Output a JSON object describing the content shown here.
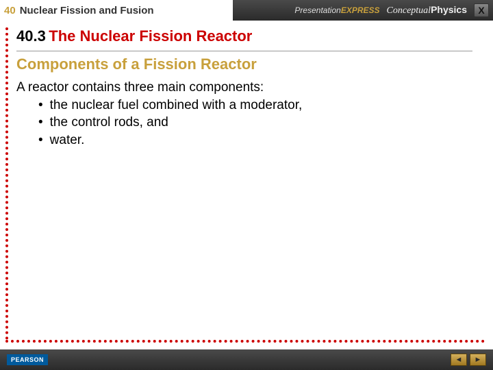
{
  "header": {
    "chapter_number": "40",
    "chapter_title": "Nuclear Fission and Fusion",
    "brand_presentation": "Presentation",
    "brand_express": "EXPRESS",
    "brand_conceptual": "Conceptual",
    "brand_physics": "Physics",
    "close_label": "X"
  },
  "content": {
    "section_number": "40.3",
    "section_title": "The Nuclear Fission Reactor",
    "subheading": "Components of a Fission Reactor",
    "intro": "A reactor contains three main components:",
    "bullets": [
      "the nuclear fuel combined with a moderator,",
      "the control rods, and",
      "water."
    ]
  },
  "footer": {
    "publisher": "PEARSON",
    "prev_glyph": "◄",
    "next_glyph": "►"
  },
  "colors": {
    "accent_red": "#cc0000",
    "accent_gold": "#c8a03c",
    "bar_dark": "#2a2a2a",
    "pearson_blue": "#005a9c"
  }
}
